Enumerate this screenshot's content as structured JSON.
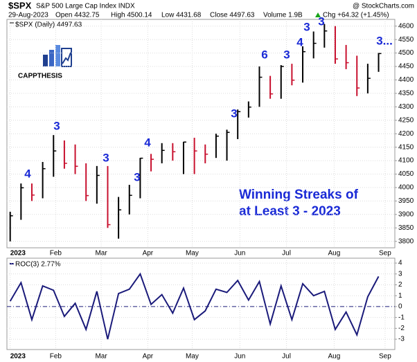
{
  "header": {
    "symbol": "$SPX",
    "name": "S&P 500 Large Cap Index INDX",
    "source": "@ StockCharts.com",
    "date": "29-Aug-2023",
    "open": "Open 4432.75",
    "high": "High 4500.14",
    "low": "Low 4431.68",
    "close": "Close 4497.63",
    "volume": "Volume 1.9B",
    "change": "Chg +64.32 (+1.45%)"
  },
  "logo": "CAPPTHESIS",
  "note": [
    "Winning Streaks of",
    "at Least 3 - 2023"
  ],
  "streaks": [
    "4",
    "3",
    "3",
    "3",
    "4",
    "3",
    "6",
    "3",
    "4",
    "3",
    "3",
    "3..."
  ],
  "chart_data": [
    {
      "type": "ohlc",
      "legend": "$SPX (Daily) 4497.63",
      "x": [
        0,
        1,
        2,
        3,
        4,
        5,
        6,
        7,
        8,
        9,
        10,
        11,
        12,
        13,
        14,
        15,
        16,
        17,
        18,
        19,
        20,
        21,
        22,
        23,
        24,
        25,
        26,
        27,
        28,
        29,
        30,
        31,
        32,
        33,
        34
      ],
      "high": [
        3910,
        4015,
        4015,
        4095,
        4195,
        4175,
        4160,
        4090,
        4080,
        4080,
        3965,
        4010,
        4110,
        4125,
        4165,
        4165,
        4170,
        4185,
        4160,
        4200,
        4215,
        4290,
        4320,
        4450,
        4415,
        4455,
        4460,
        4525,
        4580,
        4608,
        4600,
        4530,
        4490,
        4460,
        4500
      ],
      "low": [
        3800,
        3880,
        3950,
        3960,
        4040,
        4070,
        4050,
        3950,
        3940,
        3850,
        3810,
        3900,
        3960,
        4060,
        4090,
        4100,
        4050,
        4050,
        4090,
        4110,
        4100,
        4180,
        4260,
        4300,
        4330,
        4330,
        4380,
        4390,
        4480,
        4520,
        4460,
        4440,
        4340,
        4350,
        4430
      ],
      "close": [
        3895,
        3999,
        3972,
        4070,
        4136,
        4090,
        4079,
        3970,
        4045,
        3862,
        3917,
        3971,
        4109,
        4105,
        4138,
        4133,
        4169,
        4136,
        4124,
        4191,
        4205,
        4282,
        4299,
        4410,
        4348,
        4450,
        4399,
        4505,
        4536,
        4582,
        4478,
        4464,
        4370,
        4406,
        4498
      ],
      "xlim": [
        -0.3,
        35.5
      ],
      "xticks": [
        {
          "value": 0,
          "label": "2023"
        },
        {
          "value": 4.2,
          "label": "Feb"
        },
        {
          "value": 8.4,
          "label": "Mar"
        },
        {
          "value": 12.7,
          "label": "Apr"
        },
        {
          "value": 16.8,
          "label": "May"
        },
        {
          "value": 21.2,
          "label": "Jun"
        },
        {
          "value": 25.5,
          "label": "Jul"
        },
        {
          "value": 29.9,
          "label": "Aug"
        },
        {
          "value": 34.6,
          "label": "Sep"
        }
      ],
      "ylim": [
        3776,
        4625
      ],
      "yticks": [
        3800,
        3850,
        3900,
        3950,
        4000,
        4050,
        4100,
        4150,
        4200,
        4250,
        4300,
        4350,
        4400,
        4450,
        4500,
        4550,
        4600
      ],
      "up_color": "#000000",
      "down_color": "#c8102e",
      "grid": true
    },
    {
      "type": "line",
      "legend": "ROC(3) 2.77%",
      "x": [
        0,
        1,
        2,
        3,
        4,
        5,
        6,
        7,
        8,
        9,
        10,
        11,
        12,
        13,
        14,
        15,
        16,
        17,
        18,
        19,
        20,
        21,
        22,
        23,
        24,
        25,
        26,
        27,
        28,
        29,
        30,
        31,
        32,
        33,
        34
      ],
      "values": [
        0.5,
        2.2,
        -1.2,
        1.9,
        1.5,
        -0.9,
        0.3,
        -2.1,
        1.4,
        -3.0,
        1.2,
        1.6,
        3.0,
        0.2,
        1.1,
        -0.6,
        1.7,
        -1.2,
        -0.4,
        1.6,
        1.3,
        2.4,
        0.6,
        2.3,
        -1.6,
        1.9,
        -1.2,
        2.1,
        1.0,
        1.4,
        -2.1,
        -0.5,
        -2.6,
        0.9,
        2.77
      ],
      "color": "#1a1a7a",
      "xlim": [
        -0.3,
        35.5
      ],
      "xticks": [
        {
          "value": 0,
          "label": "2023"
        },
        {
          "value": 4.2,
          "label": "Feb"
        },
        {
          "value": 8.4,
          "label": "Mar"
        },
        {
          "value": 12.7,
          "label": "Apr"
        },
        {
          "value": 16.8,
          "label": "May"
        },
        {
          "value": 21.2,
          "label": "Jun"
        },
        {
          "value": 25.5,
          "label": "Jul"
        },
        {
          "value": 29.9,
          "label": "Aug"
        },
        {
          "value": 34.6,
          "label": "Sep"
        }
      ],
      "ylim": [
        -3.95,
        4.45
      ],
      "yticks": [
        -3,
        -2,
        -1,
        0,
        1,
        2,
        3,
        4
      ],
      "zero_line": 0,
      "grid": true
    }
  ]
}
